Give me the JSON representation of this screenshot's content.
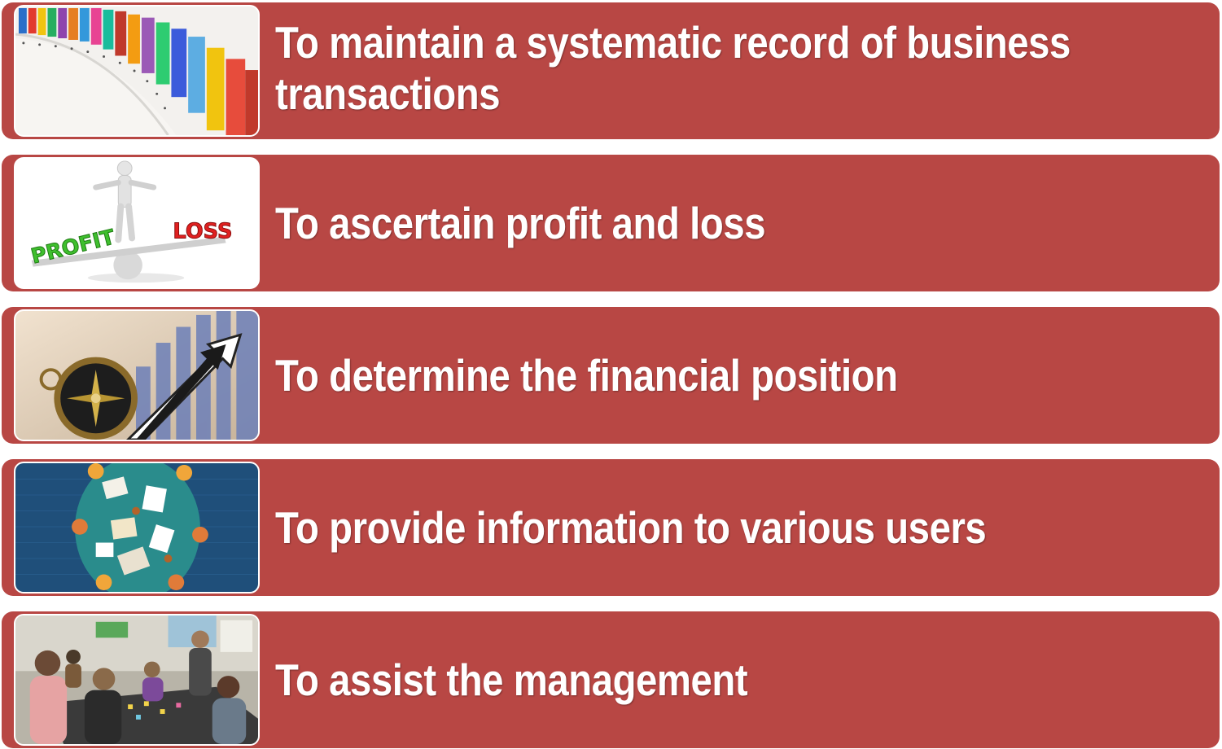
{
  "colors": {
    "row_background": "#b84744",
    "text": "#ffffff"
  },
  "items": [
    {
      "label": "To maintain a systematic record of business transactions",
      "icon": "colorful-file-folders-image"
    },
    {
      "label": "To ascertain profit and loss",
      "icon": "profit-loss-seesaw-image",
      "image_text": [
        "PROFIT",
        "LOSS"
      ]
    },
    {
      "label": "To determine the financial position",
      "icon": "compass-and-rising-chart-image"
    },
    {
      "label": "To provide information to various users",
      "icon": "meeting-table-top-view-image"
    },
    {
      "label": "To assist the management",
      "icon": "team-meeting-photo-image"
    }
  ]
}
